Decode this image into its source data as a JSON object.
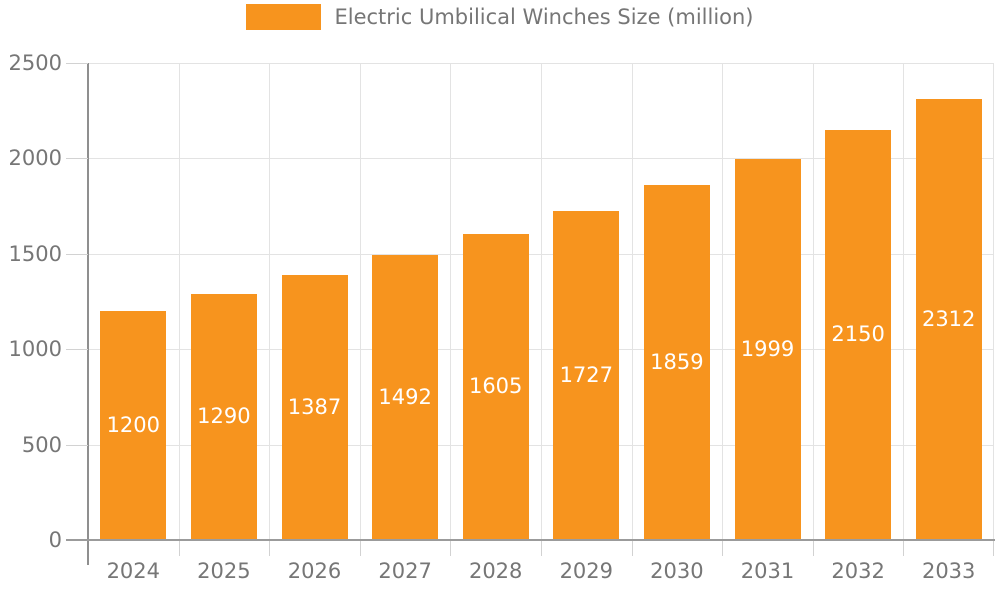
{
  "legend": {
    "label": "Electric Umbilical Winches Size (million)"
  },
  "colors": {
    "bar": "#F7941E",
    "grid": "#E3E3E3",
    "tick": "#D2D2D2",
    "axis": "#9B9B9B",
    "text": "#767676",
    "value_label": "#FFFFFF",
    "background": "#FFFFFF"
  },
  "chart_data": {
    "type": "bar",
    "title": "",
    "xlabel": "",
    "ylabel": "",
    "categories": [
      "2024",
      "2025",
      "2026",
      "2027",
      "2028",
      "2029",
      "2030",
      "2031",
      "2032",
      "2033"
    ],
    "series": [
      {
        "name": "Electric Umbilical Winches Size (million)",
        "color": "#F7941E",
        "values": [
          1200,
          1290,
          1387,
          1492,
          1605,
          1727,
          1859,
          1999,
          2150,
          2312
        ]
      }
    ],
    "value_labels": {
      "visible": true,
      "position": "inside-center",
      "color": "#FFFFFF"
    },
    "ylim": [
      0,
      2500
    ],
    "yticks": [
      0,
      500,
      1000,
      1500,
      2000,
      2500
    ],
    "grid": true,
    "legend_position": "top-center"
  }
}
